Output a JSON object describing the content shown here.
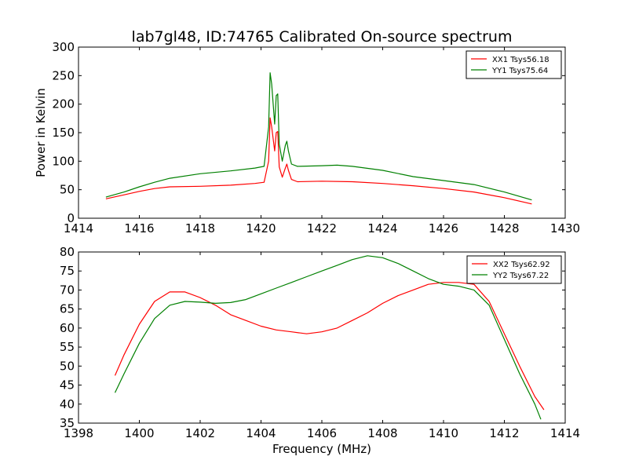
{
  "title": "lab7gl48, ID:74765 Calibrated On-source spectrum",
  "colors": {
    "red": "#ff0000",
    "green": "#008000"
  },
  "chart_data": [
    {
      "type": "line",
      "title": "lab7gl48, ID:74765 Calibrated On-source spectrum",
      "xlabel": "",
      "ylabel": "Power in Kelvin",
      "xlim": [
        1414,
        1430
      ],
      "ylim": [
        0,
        300
      ],
      "xticks": [
        "1414",
        "1416",
        "1418",
        "1420",
        "1422",
        "1424",
        "1426",
        "1428",
        "1430"
      ],
      "yticks": [
        "0",
        "50",
        "100",
        "150",
        "200",
        "250",
        "300"
      ],
      "legend_position": "top-right",
      "grid": false,
      "series": [
        {
          "name": "XX1 Tsys56.18",
          "color": "#ff0000",
          "x": [
            1414.9,
            1415.5,
            1416.0,
            1416.5,
            1417.0,
            1418.0,
            1419.0,
            1419.8,
            1420.1,
            1420.25,
            1420.3,
            1420.35,
            1420.45,
            1420.5,
            1420.55,
            1420.6,
            1420.7,
            1420.8,
            1420.85,
            1420.9,
            1421.0,
            1421.2,
            1422.0,
            1423.0,
            1424.0,
            1425.0,
            1426.0,
            1427.0,
            1428.0,
            1428.9
          ],
          "y": [
            34,
            41,
            47,
            52,
            55,
            56,
            58,
            61,
            63,
            100,
            176,
            160,
            118,
            150,
            152,
            90,
            72,
            88,
            95,
            84,
            68,
            64,
            65,
            64,
            61,
            57,
            52,
            46,
            36,
            25
          ]
        },
        {
          "name": "YY1 Tsys75.64",
          "color": "#008000",
          "x": [
            1414.9,
            1415.5,
            1416.0,
            1416.5,
            1417.0,
            1418.0,
            1419.0,
            1419.8,
            1420.1,
            1420.25,
            1420.3,
            1420.35,
            1420.45,
            1420.5,
            1420.55,
            1420.6,
            1420.7,
            1420.8,
            1420.85,
            1420.9,
            1421.0,
            1421.2,
            1422.0,
            1422.5,
            1423.0,
            1424.0,
            1425.0,
            1426.0,
            1427.0,
            1428.0,
            1428.9
          ],
          "y": [
            37,
            46,
            55,
            63,
            70,
            78,
            83,
            88,
            91,
            160,
            255,
            235,
            165,
            215,
            218,
            130,
            100,
            128,
            135,
            118,
            95,
            91,
            92,
            93,
            91,
            84,
            73,
            66,
            59,
            46,
            32
          ]
        }
      ]
    },
    {
      "type": "line",
      "title": "",
      "xlabel": "Frequency (MHz)",
      "ylabel": "",
      "xlim": [
        1398,
        1414
      ],
      "ylim": [
        35,
        80
      ],
      "xticks": [
        "1398",
        "1400",
        "1402",
        "1404",
        "1406",
        "1408",
        "1410",
        "1412",
        "1414"
      ],
      "yticks": [
        "35",
        "40",
        "45",
        "50",
        "55",
        "60",
        "65",
        "70",
        "75",
        "80"
      ],
      "legend_position": "top-right",
      "grid": false,
      "series": [
        {
          "name": "XX2 Tsys62.92",
          "color": "#ff0000",
          "x": [
            1399.2,
            1399.5,
            1400.0,
            1400.5,
            1401.0,
            1401.5,
            1402.0,
            1402.5,
            1403.0,
            1403.5,
            1404.0,
            1404.5,
            1405.0,
            1405.5,
            1406.0,
            1406.5,
            1407.0,
            1407.5,
            1408.0,
            1408.5,
            1409.0,
            1409.5,
            1410.0,
            1410.5,
            1411.0,
            1411.5,
            1412.0,
            1412.5,
            1413.0,
            1413.3
          ],
          "y": [
            47.5,
            53,
            61,
            67,
            69.5,
            69.5,
            68,
            66,
            63.5,
            62,
            60.5,
            59.5,
            59,
            58.5,
            59,
            60,
            62,
            64,
            66.5,
            68.5,
            70,
            71.5,
            72,
            72,
            71.5,
            67,
            58.5,
            50,
            42,
            38.5
          ]
        },
        {
          "name": "YY2 Tsys67.22",
          "color": "#008000",
          "x": [
            1399.2,
            1399.5,
            1400.0,
            1400.5,
            1401.0,
            1401.5,
            1402.0,
            1402.5,
            1403.0,
            1403.5,
            1404.0,
            1404.5,
            1405.0,
            1405.5,
            1406.0,
            1406.5,
            1407.0,
            1407.5,
            1408.0,
            1408.5,
            1409.0,
            1409.5,
            1410.0,
            1410.5,
            1411.0,
            1411.5,
            1412.0,
            1412.5,
            1413.0,
            1413.2
          ],
          "y": [
            43,
            48,
            56,
            62.5,
            66,
            67,
            66.8,
            66.5,
            66.7,
            67.5,
            69,
            70.5,
            72,
            73.5,
            75,
            76.5,
            78,
            79,
            78.5,
            77,
            75,
            73,
            71.5,
            71,
            70,
            66,
            57,
            48,
            40,
            36
          ]
        }
      ]
    }
  ]
}
